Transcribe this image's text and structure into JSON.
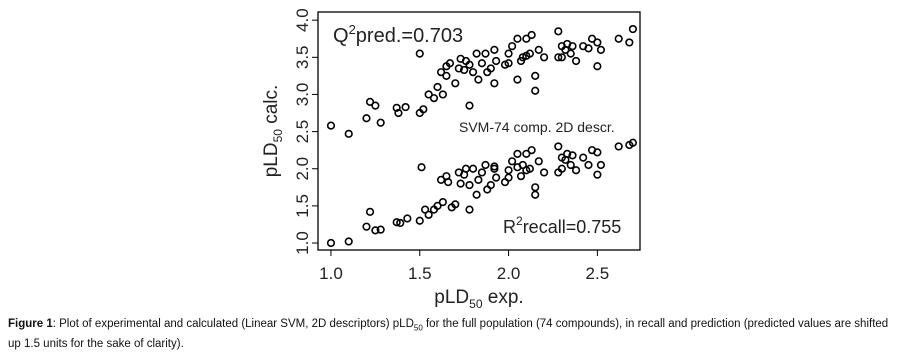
{
  "chart_data": {
    "type": "scatter",
    "x_label": {
      "text": "pLD",
      "sub": "50",
      "after": " exp."
    },
    "y_label": {
      "text": "pLD",
      "sub": "50",
      "after": " calc."
    },
    "annotations": {
      "q2": {
        "text": "Q",
        "sup": "2",
        "after": "pred.=0.703"
      },
      "method": "SVM-74 comp. 2D descr.",
      "r2": {
        "text": "R",
        "sup": "2",
        "after": "recall=0.755"
      }
    },
    "xlim": [
      0.927,
      2.74
    ],
    "ylim": [
      0.906,
      4.11
    ],
    "xticks": [
      {
        "value": 1,
        "label": "1.0"
      },
      1.5,
      {
        "value": 2,
        "label": "2.0"
      },
      2.5
    ],
    "yticks": [
      {
        "value": 1,
        "label": "1.0"
      },
      1.5,
      {
        "value": 2,
        "label": "2.0"
      },
      2.5,
      {
        "value": 3,
        "label": "3.0"
      },
      3.5,
      {
        "value": 4,
        "label": "4.0"
      }
    ],
    "series": [
      {
        "color": "#000000",
        "x": [
          1.0,
          1.1,
          1.2,
          1.22,
          1.25,
          1.28,
          1.37,
          1.38,
          1.42,
          1.5,
          1.5,
          1.52,
          1.55,
          1.58,
          1.6,
          1.62,
          1.63,
          1.65,
          1.67,
          1.7,
          1.72,
          1.73,
          1.75,
          1.76,
          1.78,
          1.78,
          1.8,
          1.82,
          1.83,
          1.85,
          1.87,
          1.88,
          1.9,
          1.92,
          1.93,
          1.98,
          2.0,
          2.0,
          2.02,
          2.05,
          2.07,
          2.08,
          2.1,
          2.1,
          2.12,
          2.13,
          2.15,
          2.15,
          2.17,
          2.2,
          2.28,
          2.3,
          2.3,
          2.32,
          2.33,
          2.35,
          2.36,
          2.38,
          2.42,
          2.45,
          2.47,
          2.5,
          2.5,
          2.52,
          2.62,
          2.68,
          2.7,
          2.28,
          2.05,
          1.92,
          1.65
        ],
        "values": [
          2.58,
          2.47,
          2.68,
          2.9,
          2.85,
          2.62,
          2.82,
          2.75,
          2.83,
          2.75,
          3.55,
          2.8,
          3.0,
          2.95,
          3.1,
          3.3,
          3.0,
          3.38,
          3.42,
          3.15,
          3.35,
          3.48,
          3.33,
          3.45,
          2.85,
          3.4,
          3.3,
          3.55,
          3.2,
          3.42,
          3.55,
          3.3,
          3.35,
          3.6,
          3.45,
          3.4,
          3.42,
          3.55,
          3.65,
          3.75,
          3.45,
          3.5,
          3.52,
          3.75,
          3.55,
          3.8,
          3.25,
          3.05,
          3.6,
          3.5,
          3.5,
          3.65,
          3.5,
          3.6,
          3.68,
          3.55,
          3.65,
          3.45,
          3.65,
          3.62,
          3.75,
          3.7,
          3.38,
          3.6,
          3.75,
          3.7,
          3.88,
          3.85,
          3.2,
          3.15,
          3.25
        ]
      },
      {
        "color": "#000000",
        "x": [
          1.0,
          1.1,
          1.2,
          1.22,
          1.25,
          1.28,
          1.37,
          1.39,
          1.43,
          1.5,
          1.51,
          1.53,
          1.55,
          1.58,
          1.6,
          1.62,
          1.63,
          1.65,
          1.66,
          1.68,
          1.7,
          1.72,
          1.73,
          1.75,
          1.76,
          1.78,
          1.78,
          1.8,
          1.82,
          1.83,
          1.85,
          1.87,
          1.88,
          1.9,
          1.92,
          1.93,
          1.98,
          2.0,
          2.0,
          2.02,
          2.05,
          2.07,
          2.08,
          2.1,
          2.1,
          2.12,
          2.13,
          2.15,
          2.15,
          2.17,
          2.2,
          2.28,
          2.3,
          2.3,
          2.32,
          2.33,
          2.35,
          2.36,
          2.38,
          2.42,
          2.45,
          2.47,
          2.5,
          2.5,
          2.52,
          2.62,
          2.68,
          2.7,
          2.28,
          2.05,
          1.92
        ],
        "values": [
          1.0,
          1.02,
          1.22,
          1.42,
          1.17,
          1.18,
          1.28,
          1.27,
          1.33,
          1.3,
          2.02,
          1.45,
          1.38,
          1.45,
          1.5,
          1.85,
          1.55,
          1.9,
          1.82,
          1.48,
          1.52,
          1.95,
          1.8,
          1.92,
          2.0,
          1.45,
          1.78,
          2.0,
          1.65,
          1.85,
          1.95,
          2.05,
          1.72,
          1.78,
          2.03,
          1.88,
          1.82,
          1.88,
          1.98,
          2.1,
          2.2,
          1.9,
          2.05,
          1.98,
          2.2,
          2.0,
          2.25,
          1.75,
          1.65,
          2.1,
          1.95,
          1.95,
          2.15,
          2.0,
          2.12,
          2.2,
          2.05,
          2.18,
          1.98,
          2.15,
          2.05,
          2.25,
          2.22,
          1.92,
          2.05,
          2.3,
          2.32,
          2.35,
          2.3,
          2.02,
          2.0
        ]
      }
    ]
  },
  "caption": {
    "label": "Figure 1",
    "text1": ": Plot of experimental and calculated (Linear SVM, 2D descriptors) pLD",
    "sub": "50",
    "text2": " for the full population (74 compounds), in recall and prediction (predicted values are shifted up 1.5 units for the sake of clarity)."
  }
}
